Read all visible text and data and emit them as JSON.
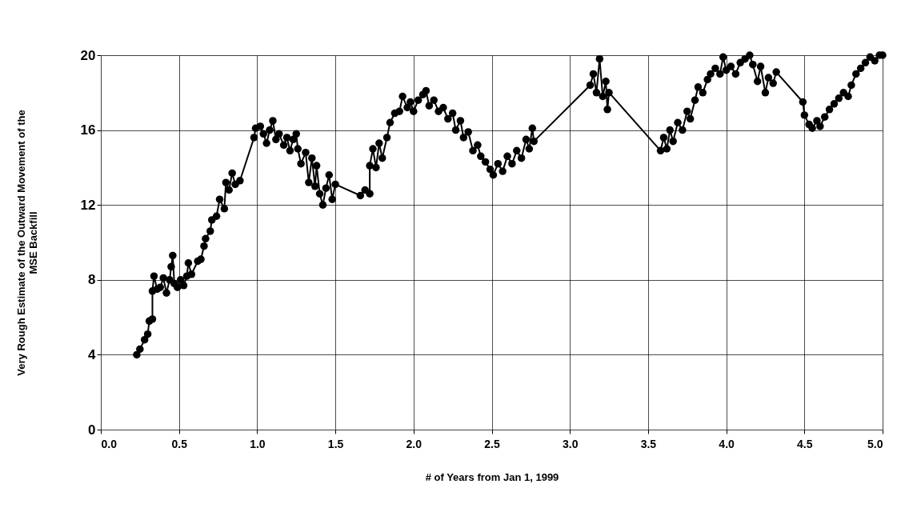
{
  "chart_data": {
    "type": "line",
    "xlabel": "# of Years from Jan 1, 1999",
    "ylabel": "Very Rough Estimate of the Outward Movement of the\nMSE Backfill",
    "xlim": [
      0,
      5
    ],
    "xticks": [
      {
        "value": 0,
        "label": "0.0"
      },
      {
        "value": 0.5,
        "label": "0.5"
      },
      {
        "value": 1,
        "label": "1.0"
      },
      {
        "value": 1.5,
        "label": "1.5"
      },
      {
        "value": 2,
        "label": "2.0"
      },
      {
        "value": 2.5,
        "label": "2.5"
      },
      {
        "value": 3,
        "label": "3.0"
      },
      {
        "value": 3.5,
        "label": "3.5"
      },
      {
        "value": 4,
        "label": "4.0"
      },
      {
        "value": 4.5,
        "label": "4.5"
      },
      {
        "value": 5,
        "label": "5.0"
      }
    ],
    "ylim": [
      0,
      20
    ],
    "yticks": [
      0,
      4,
      8,
      12,
      16,
      20
    ],
    "grid": true,
    "marker": "circle",
    "line_style": "solid",
    "series": [
      {
        "color": "#000000",
        "x": [
          0.23,
          0.25,
          0.28,
          0.3,
          0.31,
          0.33,
          0.33,
          0.34,
          0.36,
          0.38,
          0.4,
          0.42,
          0.44,
          0.45,
          0.46,
          0.47,
          0.49,
          0.51,
          0.53,
          0.55,
          0.56,
          0.58,
          0.62,
          0.64,
          0.66,
          0.67,
          0.7,
          0.71,
          0.74,
          0.76,
          0.79,
          0.8,
          0.82,
          0.84,
          0.86,
          0.89,
          0.98,
          0.99,
          1.02,
          1.04,
          1.06,
          1.08,
          1.1,
          1.12,
          1.14,
          1.17,
          1.19,
          1.21,
          1.23,
          1.25,
          1.26,
          1.28,
          1.31,
          1.33,
          1.35,
          1.37,
          1.38,
          1.4,
          1.42,
          1.44,
          1.46,
          1.48,
          1.5,
          1.66,
          1.69,
          1.72,
          1.72,
          1.74,
          1.76,
          1.78,
          1.8,
          1.83,
          1.85,
          1.88,
          1.91,
          1.93,
          1.96,
          1.98,
          2.0,
          2.03,
          2.06,
          2.08,
          2.1,
          2.13,
          2.16,
          2.19,
          2.22,
          2.25,
          2.27,
          2.3,
          2.32,
          2.35,
          2.38,
          2.41,
          2.43,
          2.46,
          2.49,
          2.51,
          2.54,
          2.57,
          2.6,
          2.63,
          2.66,
          2.69,
          2.72,
          2.74,
          2.76,
          2.77,
          3.13,
          3.15,
          3.17,
          3.19,
          3.21,
          3.23,
          3.24,
          3.25,
          3.58,
          3.6,
          3.62,
          3.64,
          3.66,
          3.69,
          3.72,
          3.75,
          3.77,
          3.8,
          3.82,
          3.85,
          3.88,
          3.9,
          3.93,
          3.96,
          3.98,
          4.0,
          4.03,
          4.06,
          4.09,
          4.12,
          4.15,
          4.17,
          4.2,
          4.22,
          4.25,
          4.27,
          4.3,
          4.32,
          4.49,
          4.5,
          4.53,
          4.55,
          4.58,
          4.6,
          4.63,
          4.66,
          4.69,
          4.72,
          4.75,
          4.78,
          4.8,
          4.83,
          4.86,
          4.89,
          4.92,
          4.95,
          4.98,
          5.0
        ],
        "values": [
          4.0,
          4.3,
          4.8,
          5.1,
          5.8,
          5.9,
          7.4,
          8.2,
          7.5,
          7.6,
          8.1,
          7.3,
          8.0,
          8.7,
          9.3,
          7.8,
          7.6,
          8.0,
          7.7,
          8.2,
          8.9,
          8.3,
          9.0,
          9.1,
          9.8,
          10.2,
          10.6,
          11.2,
          11.4,
          12.3,
          11.8,
          13.2,
          12.8,
          13.7,
          13.1,
          13.3,
          15.6,
          16.1,
          16.2,
          15.8,
          15.3,
          16.0,
          16.5,
          15.5,
          15.8,
          15.2,
          15.6,
          14.9,
          15.5,
          15.8,
          15.0,
          14.2,
          14.8,
          13.2,
          14.5,
          13.0,
          14.1,
          12.6,
          12.0,
          12.9,
          13.6,
          12.3,
          13.1,
          12.5,
          12.8,
          12.6,
          14.1,
          15.0,
          14.0,
          15.3,
          14.5,
          15.6,
          16.4,
          16.9,
          17.0,
          17.8,
          17.2,
          17.5,
          17.0,
          17.6,
          17.9,
          18.1,
          17.3,
          17.6,
          17.0,
          17.2,
          16.6,
          16.9,
          16.0,
          16.5,
          15.6,
          15.9,
          14.9,
          15.2,
          14.6,
          14.3,
          13.9,
          13.6,
          14.2,
          13.8,
          14.6,
          14.2,
          14.9,
          14.5,
          15.5,
          15.0,
          16.1,
          15.4,
          18.4,
          19.0,
          18.0,
          19.8,
          17.8,
          18.6,
          17.1,
          18.0,
          14.9,
          15.6,
          15.0,
          16.0,
          15.4,
          16.4,
          16.0,
          17.0,
          16.6,
          17.6,
          18.3,
          18.0,
          18.7,
          19.0,
          19.3,
          19.0,
          19.9,
          19.2,
          19.4,
          19.0,
          19.6,
          19.8,
          20.0,
          19.5,
          18.6,
          19.4,
          18.0,
          18.8,
          18.5,
          19.1,
          17.5,
          16.8,
          16.3,
          16.1,
          16.5,
          16.2,
          16.7,
          17.1,
          17.4,
          17.7,
          18.0,
          17.8,
          18.4,
          19.0,
          19.3,
          19.6,
          19.9,
          19.7,
          20.0,
          20.0
        ]
      }
    ]
  }
}
